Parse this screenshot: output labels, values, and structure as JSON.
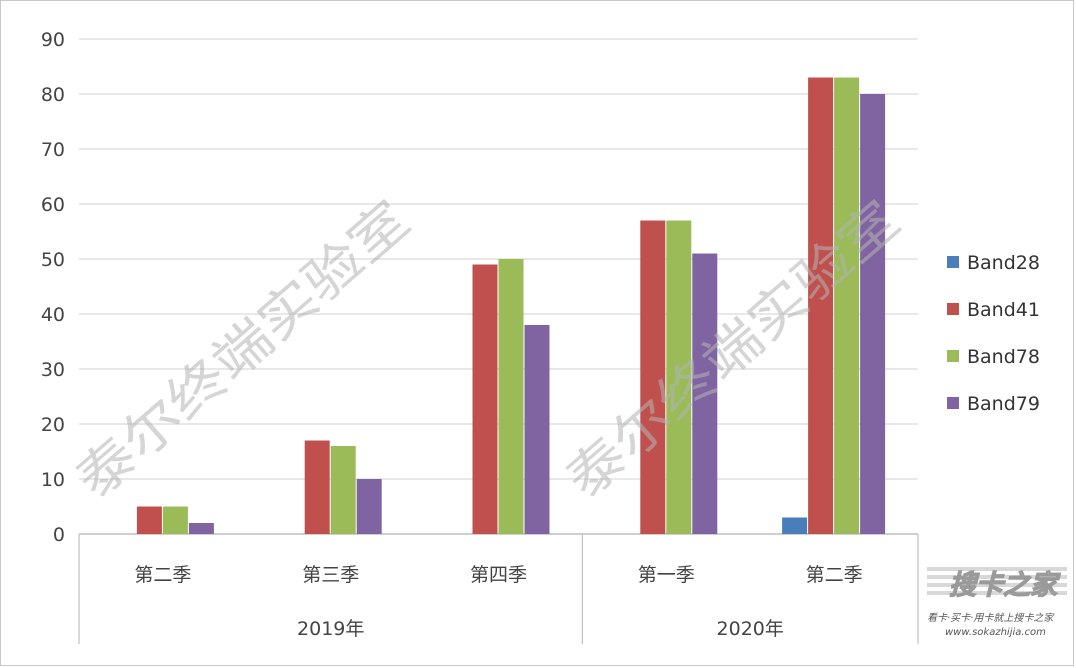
{
  "chart_data": {
    "type": "bar",
    "categories": [
      "第二季",
      "第三季",
      "第四季",
      "第一季",
      "第二季"
    ],
    "groups": [
      {
        "label": "2019年",
        "start": 0,
        "end": 2
      },
      {
        "label": "2020年",
        "start": 3,
        "end": 4
      }
    ],
    "series": [
      {
        "name": "Band28",
        "color": "#4a7ebb",
        "values": [
          0,
          0,
          0,
          0,
          3
        ]
      },
      {
        "name": "Band41",
        "color": "#c0504d",
        "values": [
          5,
          17,
          49,
          57,
          83
        ]
      },
      {
        "name": "Band78",
        "color": "#9bbb59",
        "values": [
          5,
          16,
          50,
          57,
          83
        ]
      },
      {
        "name": "Band79",
        "color": "#8064a2",
        "values": [
          2,
          10,
          38,
          51,
          80
        ]
      }
    ],
    "ylim": [
      0,
      90
    ],
    "yticks": [
      0,
      10,
      20,
      30,
      40,
      50,
      60,
      70,
      80,
      90
    ],
    "grid": true,
    "legend": "right"
  },
  "watermarks": {
    "left": "泰尔终端实验室",
    "right": "泰尔终端实验室"
  },
  "logo": {
    "title": "搜卡之家",
    "subtitle": "看卡·买卡·用卡就上搜卡之家",
    "url": "www.sokazhijia.com"
  }
}
